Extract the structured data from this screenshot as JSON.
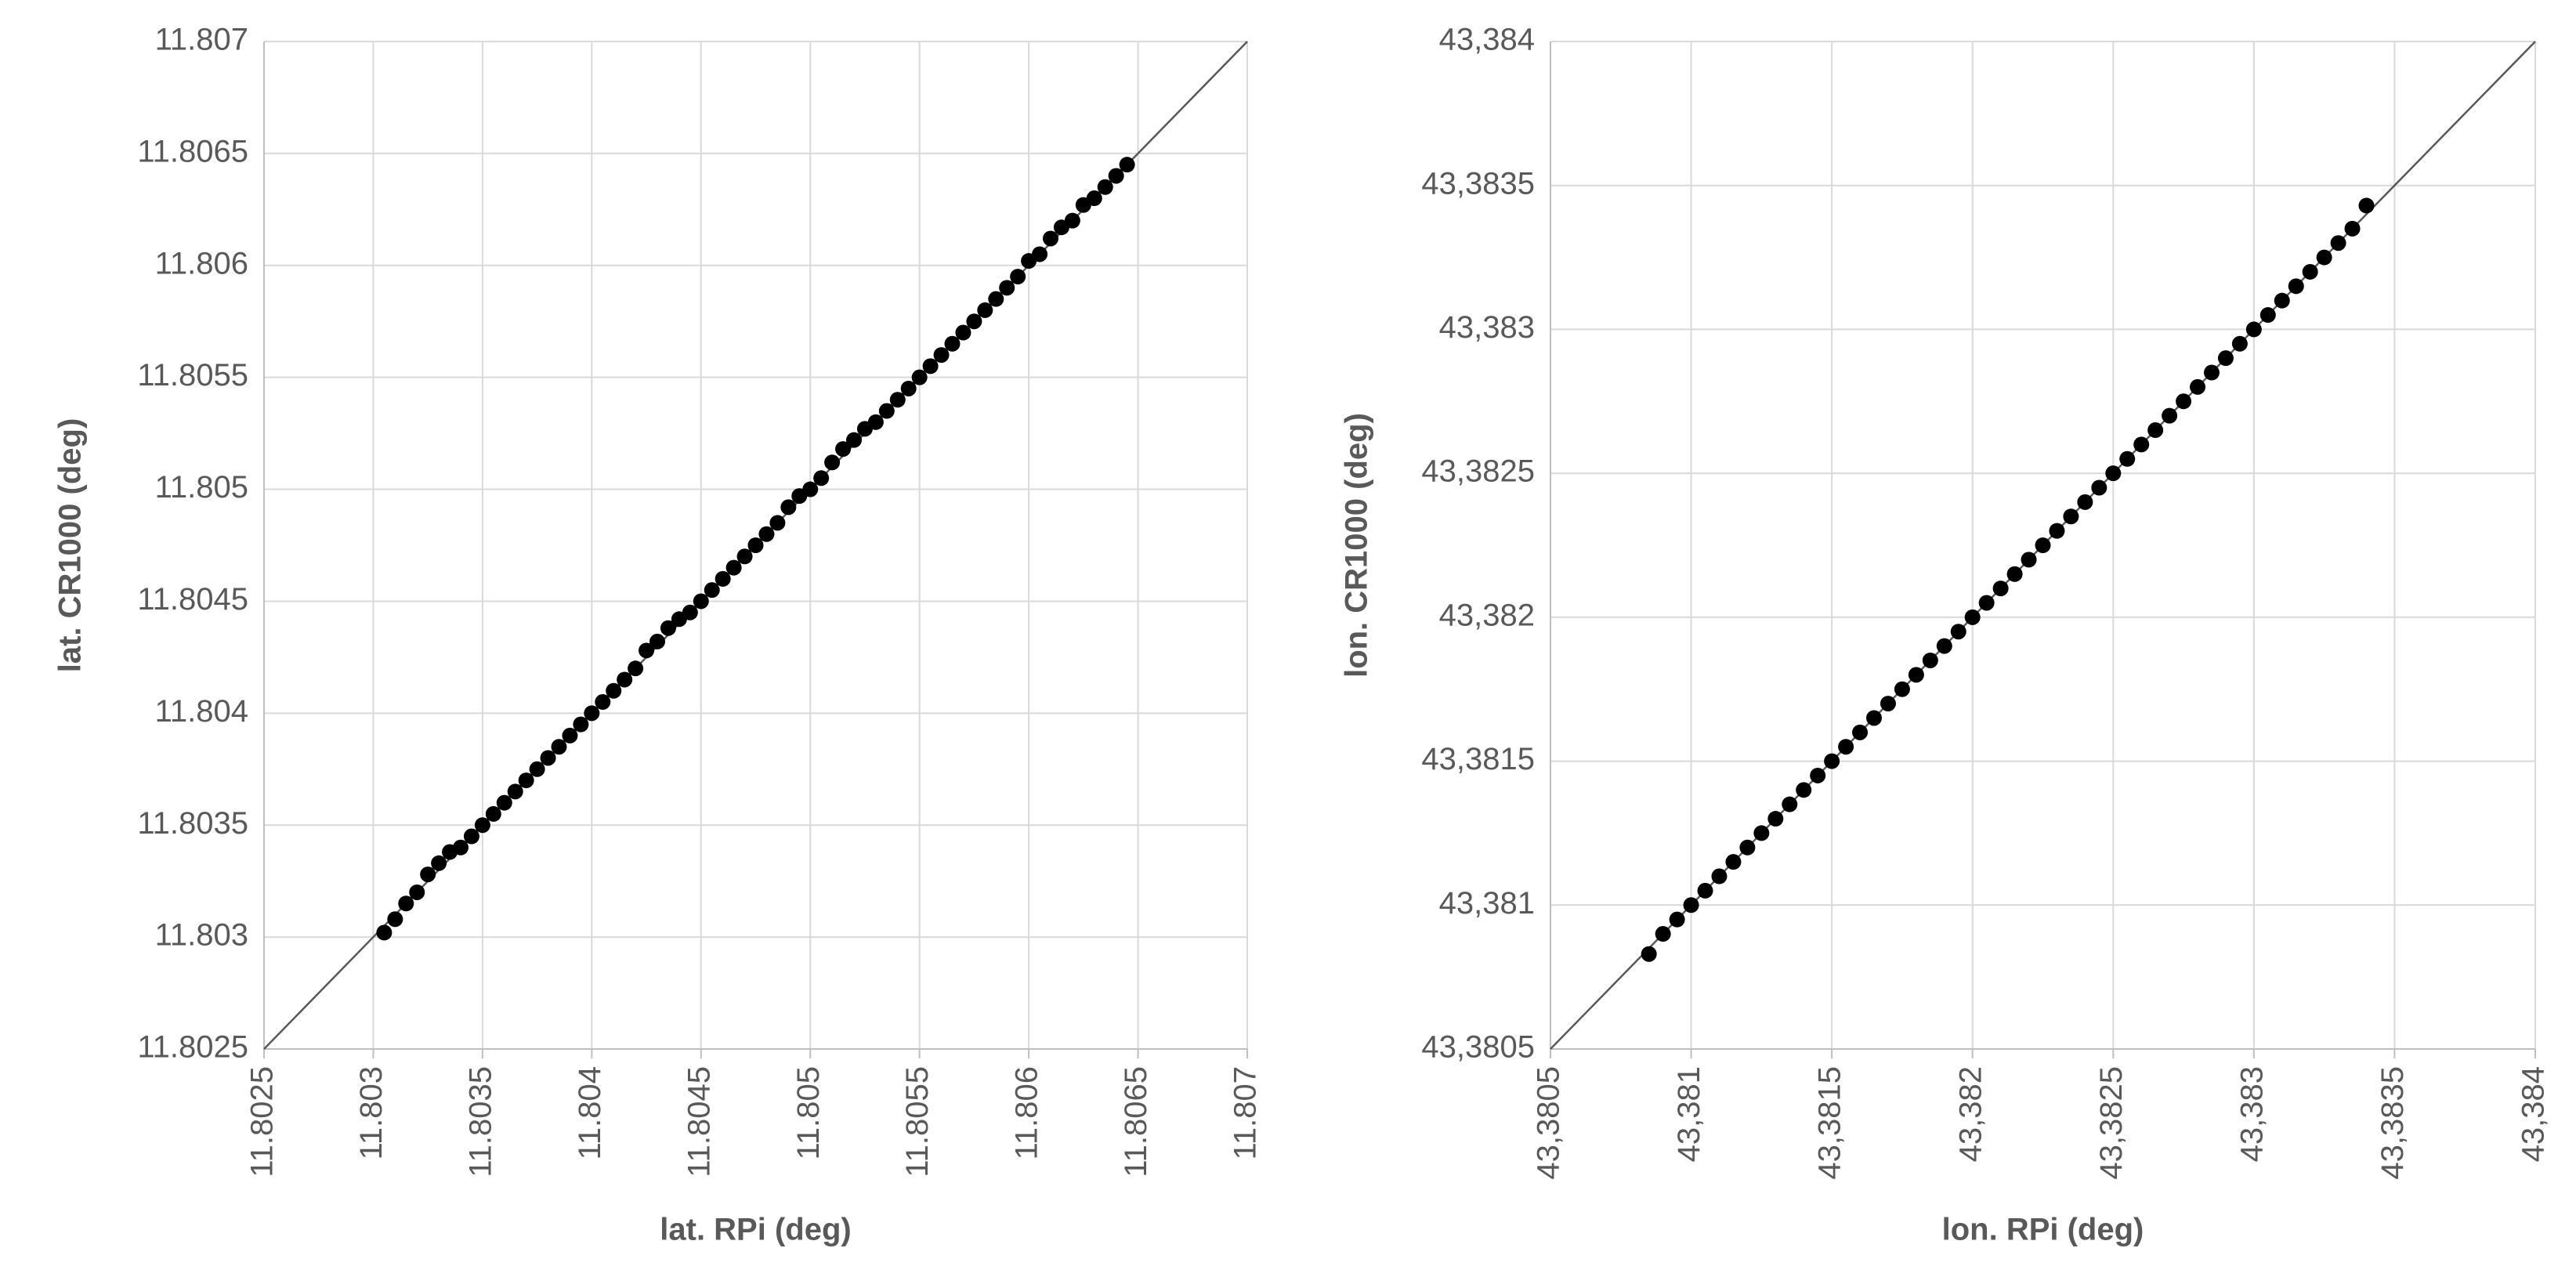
{
  "chart_data": [
    {
      "type": "scatter",
      "x_label": "lat. RPi (deg)",
      "y_label": "lat. CR1000 (deg)",
      "color": "#000000",
      "grid": true,
      "xlim": [
        11.8025,
        11.807
      ],
      "ylim": [
        11.8025,
        11.807
      ],
      "xticks": [
        11.8025,
        11.803,
        11.8035,
        11.804,
        11.8045,
        11.805,
        11.8055,
        11.806,
        11.8065,
        11.807
      ],
      "yticks": [
        11.8025,
        11.803,
        11.8035,
        11.804,
        11.8045,
        11.805,
        11.8055,
        11.806,
        11.8065,
        11.807
      ],
      "x": [
        11.80305,
        11.8031,
        11.80315,
        11.8032,
        11.80325,
        11.8033,
        11.80335,
        11.8034,
        11.80345,
        11.8035,
        11.80355,
        11.8036,
        11.80365,
        11.8037,
        11.80375,
        11.8038,
        11.80385,
        11.8039,
        11.80395,
        11.804,
        11.80405,
        11.8041,
        11.80415,
        11.8042,
        11.80425,
        11.8043,
        11.80435,
        11.8044,
        11.80445,
        11.8045,
        11.80455,
        11.8046,
        11.80465,
        11.8047,
        11.80475,
        11.8048,
        11.80485,
        11.8049,
        11.80495,
        11.805,
        11.80505,
        11.8051,
        11.80515,
        11.8052,
        11.80525,
        11.8053,
        11.80535,
        11.8054,
        11.80545,
        11.8055,
        11.80555,
        11.8056,
        11.80565,
        11.8057,
        11.80575,
        11.8058,
        11.80585,
        11.8059,
        11.80595,
        11.806,
        11.80605,
        11.8061,
        11.80615,
        11.8062,
        11.80625,
        11.8063,
        11.80635,
        11.8064,
        11.80645
      ],
      "values": [
        11.80302,
        11.80308,
        11.80315,
        11.8032,
        11.80328,
        11.80333,
        11.80338,
        11.8034,
        11.80345,
        11.8035,
        11.80355,
        11.8036,
        11.80365,
        11.8037,
        11.80375,
        11.8038,
        11.80385,
        11.8039,
        11.80395,
        11.804,
        11.80405,
        11.8041,
        11.80415,
        11.8042,
        11.80428,
        11.80432,
        11.80438,
        11.80442,
        11.80445,
        11.8045,
        11.80455,
        11.8046,
        11.80465,
        11.8047,
        11.80475,
        11.8048,
        11.80485,
        11.80492,
        11.80497,
        11.805,
        11.80505,
        11.80512,
        11.80518,
        11.80522,
        11.80527,
        11.8053,
        11.80535,
        11.8054,
        11.80545,
        11.8055,
        11.80555,
        11.8056,
        11.80565,
        11.8057,
        11.80575,
        11.8058,
        11.80585,
        11.8059,
        11.80595,
        11.80602,
        11.80605,
        11.80612,
        11.80617,
        11.8062,
        11.80627,
        11.8063,
        11.80635,
        11.8064,
        11.80645
      ]
    },
    {
      "type": "scatter",
      "x_label": "lon. RPi (deg)",
      "y_label": "lon. CR1000 (deg)",
      "color": "#000000",
      "grid": true,
      "xlim": [
        43.3805,
        43.384
      ],
      "ylim": [
        43.3805,
        43.384
      ],
      "xticks": [
        {
          "value": 43.3805,
          "label": "43,3805"
        },
        {
          "value": 43.381,
          "label": "43,381"
        },
        {
          "value": 43.3815,
          "label": "43,3815"
        },
        {
          "value": 43.382,
          "label": "43,382"
        },
        {
          "value": 43.3825,
          "label": "43,3825"
        },
        {
          "value": 43.383,
          "label": "43,383"
        },
        {
          "value": 43.3835,
          "label": "43,3835"
        },
        {
          "value": 43.384,
          "label": "43,384"
        }
      ],
      "yticks": [
        {
          "value": 43.3805,
          "label": "43,3805"
        },
        {
          "value": 43.381,
          "label": "43,381"
        },
        {
          "value": 43.3815,
          "label": "43,3815"
        },
        {
          "value": 43.382,
          "label": "43,382"
        },
        {
          "value": 43.3825,
          "label": "43,3825"
        },
        {
          "value": 43.383,
          "label": "43,383"
        },
        {
          "value": 43.3835,
          "label": "43,3835"
        },
        {
          "value": 43.384,
          "label": "43,384"
        }
      ],
      "x": [
        43.38085,
        43.3809,
        43.38095,
        43.381,
        43.38105,
        43.3811,
        43.38115,
        43.3812,
        43.38125,
        43.3813,
        43.38135,
        43.3814,
        43.38145,
        43.3815,
        43.38155,
        43.3816,
        43.38165,
        43.3817,
        43.38175,
        43.3818,
        43.38185,
        43.3819,
        43.38195,
        43.382,
        43.38205,
        43.3821,
        43.38215,
        43.3822,
        43.38225,
        43.3823,
        43.38235,
        43.3824,
        43.38245,
        43.3825,
        43.38255,
        43.3826,
        43.38265,
        43.3827,
        43.38275,
        43.3828,
        43.38285,
        43.3829,
        43.38295,
        43.383,
        43.38305,
        43.3831,
        43.38315,
        43.3832,
        43.38325,
        43.3833,
        43.38335,
        43.3834
      ],
      "values": [
        43.38083,
        43.3809,
        43.38095,
        43.381,
        43.38105,
        43.3811,
        43.38115,
        43.3812,
        43.38125,
        43.3813,
        43.38135,
        43.3814,
        43.38145,
        43.3815,
        43.38155,
        43.3816,
        43.38165,
        43.3817,
        43.38175,
        43.3818,
        43.38185,
        43.3819,
        43.38195,
        43.382,
        43.38205,
        43.3821,
        43.38215,
        43.3822,
        43.38225,
        43.3823,
        43.38235,
        43.3824,
        43.38245,
        43.3825,
        43.38255,
        43.3826,
        43.38265,
        43.3827,
        43.38275,
        43.3828,
        43.38285,
        43.3829,
        43.38295,
        43.383,
        43.38305,
        43.3831,
        43.38315,
        43.3832,
        43.38325,
        43.3833,
        43.38335,
        43.38343
      ]
    }
  ]
}
